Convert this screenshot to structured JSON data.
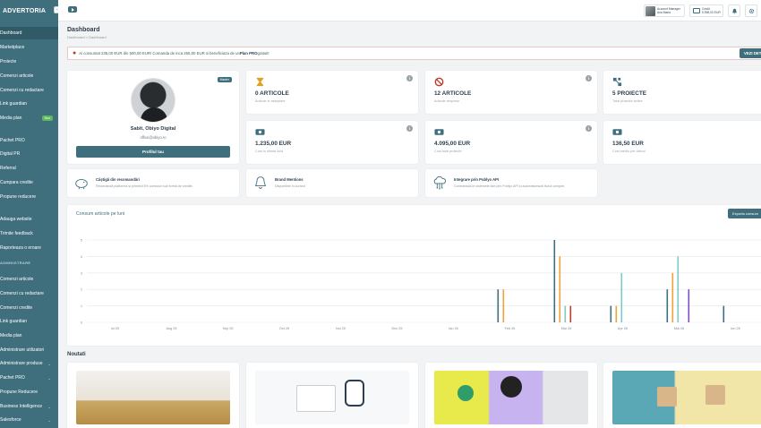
{
  "app": {
    "logo_text": "ADVERTORIA"
  },
  "sidebar": {
    "items": [
      {
        "label": "Dashboard",
        "active": true
      },
      {
        "label": "Marketplace"
      },
      {
        "label": "Proiecte"
      },
      {
        "label": "Comenzi articole"
      },
      {
        "label": "Comenzi cu redactare"
      },
      {
        "label": "Link guardian"
      },
      {
        "label": "Media plan",
        "badge": "Nou"
      },
      {
        "label": "Pachet PRO"
      },
      {
        "label": "Digital PR"
      },
      {
        "label": "Referral"
      },
      {
        "label": "Cumpara credite"
      },
      {
        "label": "Propune reducere"
      },
      {
        "label": "Adauga website"
      },
      {
        "label": "Trimite feedback"
      },
      {
        "label": "Raporteaza o eroare"
      },
      {
        "label": "Comenzi articole"
      },
      {
        "label": "Comenzi cu redactare"
      },
      {
        "label": "Comenzi credite"
      },
      {
        "label": "Link guardian"
      },
      {
        "label": "Media plan"
      },
      {
        "label": "Administrare utilizatori"
      },
      {
        "label": "Administrare produse",
        "chevron": true
      },
      {
        "label": "Pachet PRO",
        "chevron": true
      },
      {
        "label": "Propune Reducere"
      },
      {
        "label": "Business Intelligence",
        "chevron": true
      },
      {
        "label": "Salesforce",
        "chevron": true
      }
    ],
    "section_label": "ADMINISTRARE"
  },
  "topbar": {
    "account_role": "Account Manager",
    "account_name": "Ana Maria",
    "credit_label": "Credit",
    "credit_value": "5.995,00 EUR"
  },
  "page": {
    "title": "Dashboard",
    "breadcrumb": "Dashboard  >  Dashboard"
  },
  "alert": {
    "text_before": "Ai consumat 235,00 EUR din 500,00 EUR! Comanda de inca 265,00 EUR si beneficiaza de un ",
    "text_bold": "Plan PRO",
    "text_after": " gratuit!",
    "button_label": "VEZI DETALII"
  },
  "profile": {
    "badge": "Master",
    "name": "Sabit, Obiyo Digital",
    "email": "office@obiyo.ro",
    "button_label": "Profilul tau"
  },
  "stats": [
    {
      "icon": "hourglass-icon",
      "value": "0 ARTICOLE",
      "label": "Articole in asteptare"
    },
    {
      "icon": "forbidden-icon",
      "value": "12 ARTICOLE",
      "label": "Articole respinse"
    },
    {
      "icon": "share-nodes-icon",
      "value": "5 PROIECTE",
      "label": "Total proiecte active"
    },
    {
      "icon": "money-icon",
      "value": "1.235,00 EUR",
      "label": "Cost in ultima luna"
    },
    {
      "icon": "money-icon",
      "value": "4.095,00 EUR",
      "label": "Cost total proiecte"
    },
    {
      "icon": "money-icon",
      "value": "136,50 EUR",
      "label": "Cost mediu per articol"
    }
  ],
  "features": [
    {
      "icon": "piggy-bank-icon",
      "title": "Câștigă din recomandări",
      "desc": "Recomandă platforma și primești 5% comision sub formă de credite."
    },
    {
      "icon": "bell-icon",
      "title": "Brand Mentions",
      "desc": "Disponibile în curând"
    },
    {
      "icon": "cloud-api-icon",
      "title": "Integrare prin Publyo API",
      "desc": "Conectează-te sistemele tale prin Publyo API și automatizează fluxul complet."
    }
  ],
  "chart_section": {
    "title": "Consum articole pe luni",
    "export_label": "Exporta consum"
  },
  "chart_data": {
    "type": "bar",
    "categories": [
      "Iul 25",
      "Aug 25",
      "Sep 25",
      "Oct 25",
      "Noi 25",
      "Dec 25",
      "Ian 26",
      "Feb 26",
      "Mar 26",
      "Apr 26",
      "Mai 26",
      "Iun 26"
    ],
    "ylim": [
      0,
      5
    ],
    "yticks": [
      0,
      1,
      2,
      3,
      4,
      5
    ],
    "grid": true,
    "series": [
      {
        "color": "#3f6f7d",
        "values": [
          0,
          0,
          0,
          0,
          0,
          0,
          0,
          2,
          5,
          1,
          2,
          1
        ]
      },
      {
        "color": "#f0a23a",
        "values": [
          0,
          0,
          0,
          0,
          0,
          0,
          0,
          2,
          4,
          1,
          3,
          0
        ]
      },
      {
        "color": "#7fc8c6",
        "values": [
          0,
          0,
          0,
          0,
          0,
          0,
          0,
          0,
          1,
          3,
          4,
          0
        ]
      },
      {
        "color": "#c0392b",
        "values": [
          0,
          0,
          0,
          0,
          0,
          0,
          0,
          0,
          1,
          0,
          0,
          0
        ]
      },
      {
        "color": "#7b4fc9",
        "values": [
          0,
          0,
          0,
          0,
          0,
          0,
          0,
          0,
          0,
          0,
          2,
          0
        ]
      }
    ]
  },
  "news": {
    "title": "Noutati"
  }
}
